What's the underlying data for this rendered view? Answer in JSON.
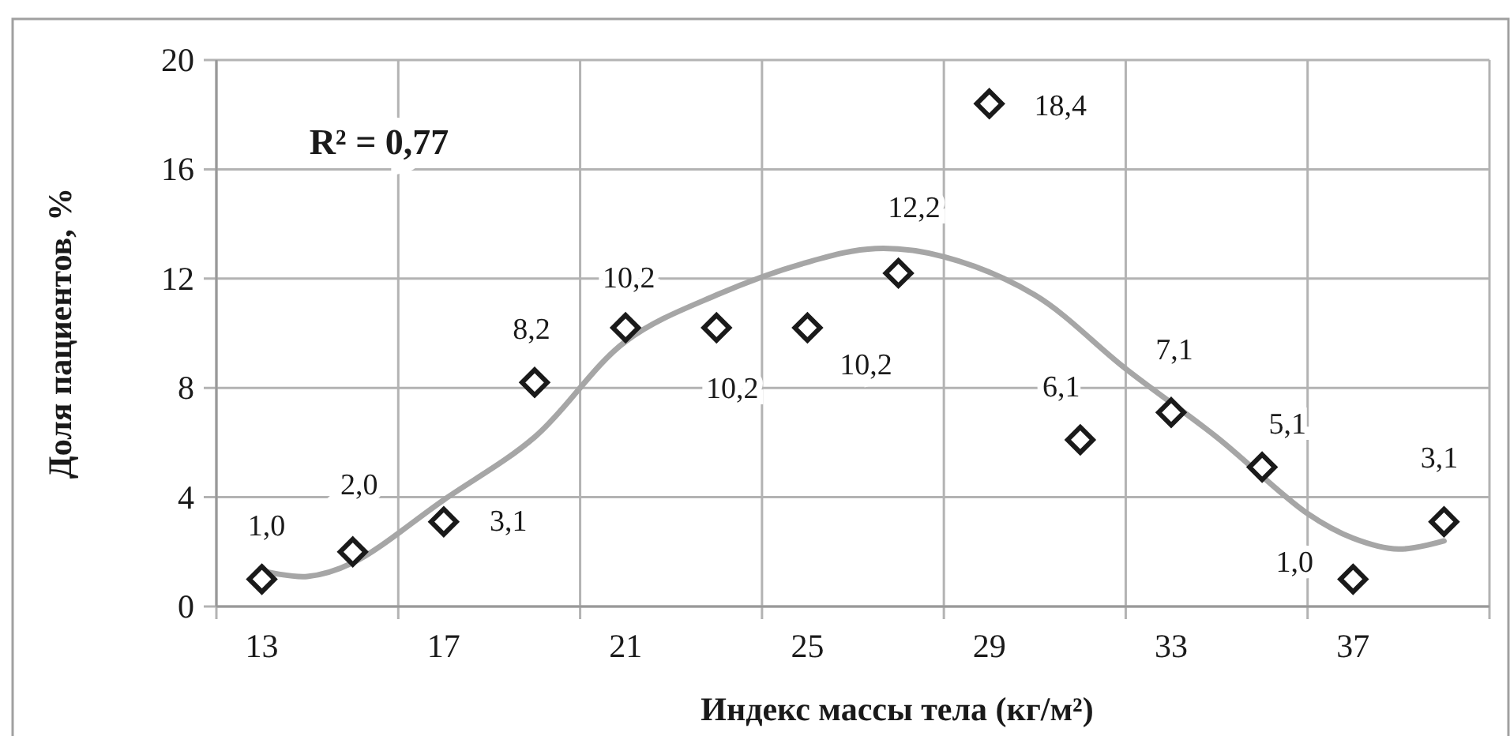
{
  "chart_data": {
    "type": "scatter",
    "xlabel": "Индекс массы тела (кг/м²)",
    "ylabel": "Доля пациентов, %",
    "annotations": [
      "R² = 0,77"
    ],
    "xlim": [
      12,
      40
    ],
    "xticks": [
      {
        "value": 12,
        "label": null
      },
      13,
      {
        "value": 16,
        "label": null
      },
      17,
      {
        "value": 20,
        "label": null
      },
      21,
      {
        "value": 24,
        "label": null
      },
      25,
      {
        "value": 28,
        "label": null
      },
      29,
      {
        "value": 32,
        "label": null
      },
      33,
      {
        "value": 36,
        "label": null
      },
      37,
      {
        "value": 40,
        "label": null
      }
    ],
    "ylim": [
      0,
      20
    ],
    "yticks": [
      0,
      4,
      8,
      12,
      16,
      20
    ],
    "grid": true,
    "series": [
      {
        "marker": "diamond",
        "color": "#1a1a1a",
        "x": [
          13,
          15,
          17,
          19,
          21,
          23,
          25,
          27,
          29,
          31,
          33,
          35,
          37,
          39
        ],
        "values": [
          1.0,
          2.0,
          3.1,
          8.2,
          10.2,
          10.2,
          10.2,
          12.2,
          18.4,
          6.1,
          7.1,
          5.1,
          1.0,
          3.1
        ],
        "value_labels": [
          "1,0",
          "2,0",
          "3,1",
          "8,2",
          "10,2",
          "10,2",
          "10,2",
          "12,2",
          "18,4",
          "6,1",
          "7,1",
          "5,1",
          "1,0",
          "3,1"
        ]
      },
      {
        "type": "line",
        "color": "#a6a6a6",
        "line_style": "solid",
        "marker": "none",
        "x": [
          13,
          14,
          15,
          17,
          19,
          21,
          23,
          25,
          26.5,
          28,
          30,
          32,
          34,
          36,
          37,
          38,
          39
        ],
        "values": [
          1.3,
          1.1,
          1.6,
          3.9,
          6.2,
          9.7,
          11.4,
          12.6,
          13.1,
          12.8,
          11.4,
          8.7,
          6.2,
          3.4,
          2.5,
          2.1,
          2.4
        ]
      }
    ]
  }
}
